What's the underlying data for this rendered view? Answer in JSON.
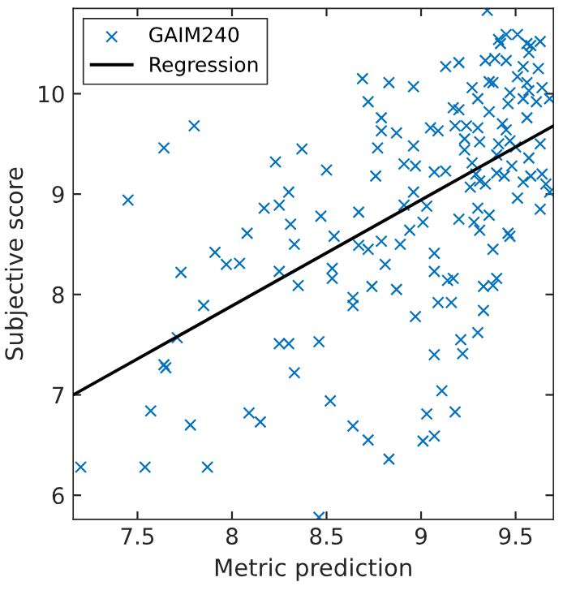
{
  "chart_data": {
    "type": "scatter",
    "xlabel": "Metric prediction",
    "ylabel": "Subjective score",
    "xlim": [
      7.16,
      9.7
    ],
    "ylim": [
      5.76,
      10.85
    ],
    "xticks": [
      7.5,
      8,
      8.5,
      9,
      9.5
    ],
    "yticks": [
      6,
      7,
      8,
      9,
      10
    ],
    "grid": false,
    "legend": "top left",
    "marker": "cross",
    "series": [
      {
        "name": "GAIM240",
        "color": "#0072bd",
        "x": [
          7.2,
          7.54,
          7.87,
          7.57,
          7.78,
          7.64,
          7.65,
          7.71,
          7.85,
          7.73,
          7.97,
          8.04,
          8.09,
          8.15,
          8.25,
          8.25,
          8.3,
          8.33,
          8.35,
          7.45,
          7.64,
          7.8,
          8.23,
          8.37,
          8.3,
          8.17,
          8.25,
          8.31,
          8.33,
          8.08,
          7.91,
          9.35,
          8.69,
          8.83,
          8.96,
          8.72,
          8.79,
          8.79,
          8.87,
          8.77,
          8.96,
          8.5,
          8.91,
          8.97,
          8.76,
          9.07,
          9.13,
          8.96,
          8.91,
          9.03,
          8.67,
          8.47,
          9.01,
          8.54,
          8.94,
          8.67,
          8.72,
          8.79,
          8.89,
          8.81,
          8.53,
          9.07,
          9.2,
          9.28,
          9.3,
          9.31,
          9.36,
          9.38,
          9.46,
          9.47,
          9.63,
          9.51,
          9.68,
          9.13,
          9.2,
          9.34,
          9.39,
          9.45,
          9.41,
          9.42,
          9.45,
          9.51,
          9.56,
          9.58,
          9.63,
          9.57,
          9.54,
          9.62,
          9.51,
          9.56,
          9.57,
          9.64,
          9.54,
          9.61,
          9.68,
          9.36,
          9.38,
          9.27,
          9.3,
          9.47,
          9.46,
          9.36,
          9.56,
          9.17,
          9.2,
          9.05,
          9.09,
          9.18,
          9.24,
          9.3,
          9.43,
          9.45,
          9.23,
          9.23,
          9.31,
          9.41,
          9.47,
          9.5,
          9.57,
          9.63,
          9.4,
          9.48,
          9.27,
          9.29,
          9.31,
          9.4,
          9.44,
          9.54,
          9.64,
          9.66,
          9.58,
          9.34,
          9.26,
          8.53,
          8.74,
          8.87,
          8.64,
          8.64,
          9.07,
          9.14,
          9.17,
          9.33,
          9.38,
          9.4,
          8.97,
          9.09,
          9.16,
          9.33,
          9.3,
          9.21,
          9.07,
          9.22,
          8.46,
          8.52,
          9.11,
          9.03,
          9.18,
          8.64,
          8.72,
          8.83,
          9.01,
          9.07,
          8.46
        ],
        "values": [
          6.28,
          6.28,
          6.28,
          6.84,
          6.7,
          7.3,
          7.27,
          7.57,
          7.89,
          8.22,
          8.3,
          8.31,
          6.82,
          6.73,
          8.23,
          7.51,
          7.51,
          7.22,
          8.09,
          8.94,
          9.46,
          9.68,
          9.32,
          9.45,
          9.02,
          8.86,
          8.89,
          8.7,
          8.5,
          8.61,
          8.42,
          10.83,
          10.15,
          10.11,
          10.07,
          9.92,
          9.76,
          9.63,
          9.61,
          9.46,
          9.48,
          9.24,
          9.3,
          9.28,
          9.18,
          9.22,
          9.23,
          9.02,
          8.89,
          8.88,
          8.82,
          8.78,
          8.72,
          8.58,
          8.64,
          8.49,
          8.45,
          8.53,
          8.5,
          8.3,
          8.26,
          8.41,
          8.75,
          8.72,
          8.86,
          8.64,
          8.79,
          8.45,
          8.61,
          8.58,
          8.85,
          8.96,
          9.02,
          10.27,
          10.31,
          10.33,
          10.35,
          10.33,
          10.54,
          10.5,
          10.59,
          10.59,
          10.5,
          10.48,
          10.52,
          10.41,
          10.27,
          10.25,
          10.17,
          10.11,
          10.03,
          10.06,
          9.95,
          9.92,
          9.95,
          10.12,
          10.11,
          10.06,
          9.95,
          10.01,
          9.9,
          9.82,
          9.76,
          9.86,
          9.84,
          9.66,
          9.63,
          9.68,
          9.68,
          9.66,
          9.7,
          9.64,
          9.55,
          9.44,
          9.52,
          9.5,
          9.53,
          9.47,
          9.36,
          9.5,
          9.39,
          9.28,
          9.31,
          9.2,
          9.13,
          9.21,
          9.18,
          9.12,
          9.2,
          9.1,
          9.18,
          9.1,
          9.07,
          8.16,
          8.08,
          8.05,
          7.97,
          7.89,
          8.23,
          8.14,
          8.16,
          8.08,
          8.09,
          8.16,
          7.78,
          7.92,
          7.92,
          7.84,
          7.62,
          7.55,
          7.4,
          7.41,
          7.53,
          6.94,
          7.04,
          6.81,
          6.83,
          6.69,
          6.55,
          6.36,
          6.54,
          6.59,
          5.78
        ]
      },
      {
        "name": "Regression",
        "type": "line",
        "color": "#000000",
        "marker": "none",
        "line_style": "solid",
        "x": [
          7.16,
          9.7
        ],
        "values": [
          7.0,
          9.68
        ]
      }
    ]
  }
}
